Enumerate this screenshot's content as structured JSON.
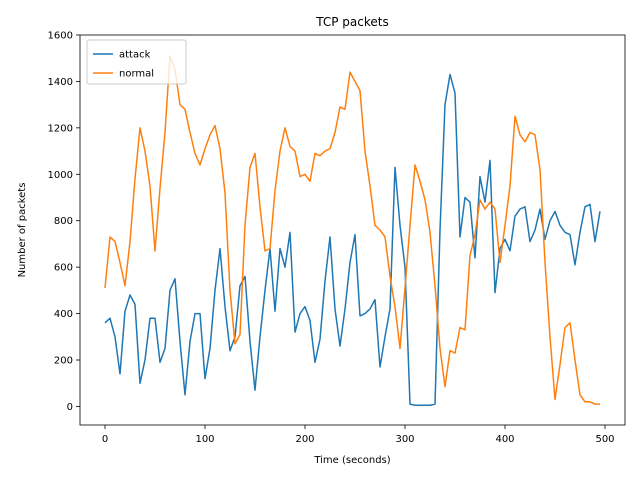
{
  "chart_data": {
    "type": "line",
    "title": "TCP packets",
    "xlabel": "Time (seconds)",
    "ylabel": "Number of packets",
    "xlim": [
      -25,
      520
    ],
    "ylim": [
      -80,
      1600
    ],
    "xticks": [
      0,
      100,
      200,
      300,
      400,
      500
    ],
    "yticks": [
      0,
      200,
      400,
      600,
      800,
      1000,
      1200,
      1400,
      1600
    ],
    "grid": false,
    "legend": "top-left",
    "x": [
      0,
      5,
      10,
      15,
      20,
      25,
      30,
      35,
      40,
      45,
      50,
      55,
      60,
      65,
      70,
      75,
      80,
      85,
      90,
      95,
      100,
      105,
      110,
      115,
      120,
      125,
      130,
      135,
      140,
      145,
      150,
      155,
      160,
      165,
      170,
      175,
      180,
      185,
      190,
      195,
      200,
      205,
      210,
      215,
      220,
      225,
      230,
      235,
      240,
      245,
      250,
      255,
      260,
      265,
      270,
      275,
      280,
      285,
      290,
      295,
      300,
      305,
      310,
      315,
      320,
      325,
      330,
      335,
      340,
      345,
      350,
      355,
      360,
      365,
      370,
      375,
      380,
      385,
      390,
      395,
      400,
      405,
      410,
      415,
      420,
      425,
      430,
      435,
      440,
      445,
      450,
      455,
      460,
      465,
      470,
      475,
      480,
      485,
      490,
      495
    ],
    "series": [
      {
        "name": "attack",
        "color": "#1f77b4",
        "values": [
          360,
          380,
          300,
          140,
          410,
          480,
          440,
          100,
          200,
          380,
          380,
          190,
          250,
          500,
          550,
          280,
          50,
          280,
          400,
          400,
          120,
          250,
          500,
          680,
          430,
          240,
          300,
          520,
          560,
          280,
          70,
          300,
          500,
          680,
          410,
          680,
          600,
          750,
          320,
          400,
          430,
          370,
          190,
          290,
          540,
          730,
          420,
          260,
          420,
          620,
          740,
          390,
          400,
          420,
          460,
          170,
          300,
          420,
          1030,
          780,
          600,
          10,
          5,
          5,
          5,
          5,
          10,
          760,
          1300,
          1430,
          1350,
          730,
          900,
          880,
          640,
          990,
          880,
          1060,
          490,
          680,
          720,
          670,
          820,
          850,
          860,
          710,
          760,
          850,
          720,
          800,
          840,
          780,
          750,
          740,
          610,
          750,
          860,
          870,
          710,
          840
        ]
      },
      {
        "name": "normal",
        "color": "#ff7f0e",
        "values": [
          510,
          730,
          710,
          620,
          520,
          710,
          980,
          1200,
          1100,
          950,
          670,
          940,
          1180,
          1510,
          1450,
          1300,
          1280,
          1180,
          1090,
          1040,
          1110,
          1170,
          1210,
          1110,
          920,
          500,
          270,
          310,
          780,
          1030,
          1090,
          860,
          670,
          680,
          930,
          1100,
          1200,
          1120,
          1100,
          990,
          1000,
          970,
          1090,
          1080,
          1100,
          1110,
          1180,
          1290,
          1280,
          1440,
          1400,
          1360,
          1100,
          950,
          780,
          760,
          730,
          560,
          430,
          250,
          510,
          780,
          1040,
          970,
          890,
          750,
          520,
          250,
          85,
          240,
          230,
          340,
          330,
          650,
          740,
          890,
          850,
          880,
          850,
          620,
          780,
          950,
          1250,
          1170,
          1140,
          1180,
          1170,
          1020,
          620,
          300,
          30,
          180,
          340,
          360,
          200,
          50,
          20,
          20,
          10,
          10
        ]
      }
    ]
  }
}
